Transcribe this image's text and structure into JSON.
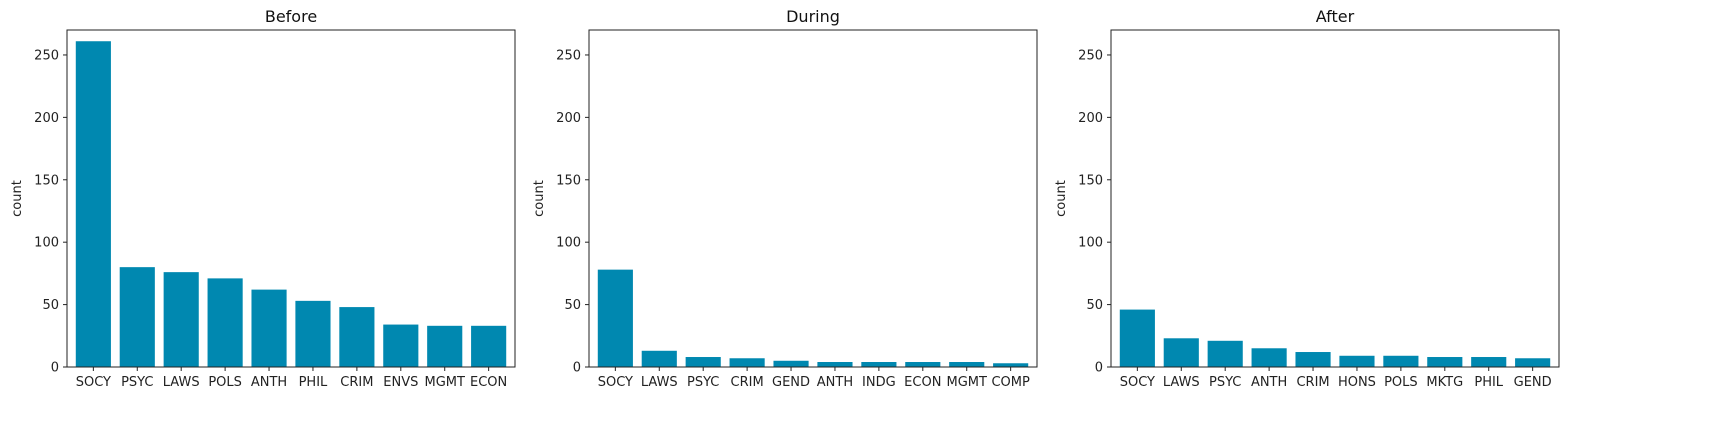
{
  "colors": {
    "bar": "#0088b0",
    "text": "#222222",
    "axis": "#222222"
  },
  "chart_data": [
    {
      "type": "bar",
      "title": "Before",
      "xlabel": "",
      "ylabel": "count",
      "ylim": [
        0,
        270
      ],
      "yticks": [
        0,
        50,
        100,
        150,
        200,
        250
      ],
      "categories": [
        "SOCY",
        "PSYC",
        "LAWS",
        "POLS",
        "ANTH",
        "PHIL",
        "CRIM",
        "ENVS",
        "MGMT",
        "ECON"
      ],
      "values": [
        261,
        80,
        76,
        71,
        62,
        53,
        48,
        34,
        33,
        33
      ]
    },
    {
      "type": "bar",
      "title": "During",
      "xlabel": "",
      "ylabel": "count",
      "ylim": [
        0,
        270
      ],
      "yticks": [
        0,
        50,
        100,
        150,
        200,
        250
      ],
      "categories": [
        "SOCY",
        "LAWS",
        "PSYC",
        "CRIM",
        "GEND",
        "ANTH",
        "INDG",
        "ECON",
        "MGMT",
        "COMP"
      ],
      "values": [
        78,
        13,
        8,
        7,
        5,
        4,
        4,
        4,
        4,
        3
      ]
    },
    {
      "type": "bar",
      "title": "After",
      "xlabel": "",
      "ylabel": "count",
      "ylim": [
        0,
        270
      ],
      "yticks": [
        0,
        50,
        100,
        150,
        200,
        250
      ],
      "categories": [
        "SOCY",
        "LAWS",
        "PSYC",
        "ANTH",
        "CRIM",
        "HONS",
        "POLS",
        "MKTG",
        "PHIL",
        "GEND"
      ],
      "values": [
        46,
        23,
        21,
        15,
        12,
        9,
        9,
        8,
        8,
        7
      ]
    }
  ]
}
